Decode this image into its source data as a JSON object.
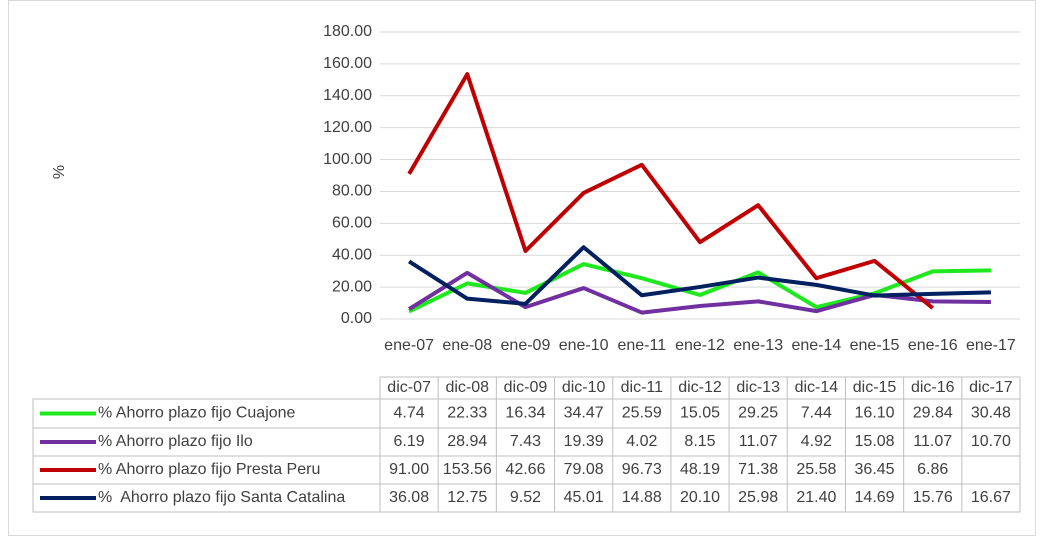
{
  "chart_data": {
    "type": "line",
    "y_label": "%",
    "categories": [
      "ene-07",
      "ene-08",
      "ene-09",
      "ene-10",
      "ene-11",
      "ene-12",
      "ene-13",
      "ene-14",
      "ene-15",
      "ene-16",
      "ene-17"
    ],
    "table_columns": [
      "dic-07",
      "dic-08",
      "dic-09",
      "dic-10",
      "dic-11",
      "dic-12",
      "dic-13",
      "dic-14",
      "dic-15",
      "dic-16",
      "dic-17"
    ],
    "ylim": [
      0,
      180
    ],
    "yticks": [
      {
        "value": 0,
        "label": "0.00"
      },
      {
        "value": 20,
        "label": "20.00"
      },
      {
        "value": 40,
        "label": "40.00"
      },
      {
        "value": 60,
        "label": "60.00"
      },
      {
        "value": 80,
        "label": "80.00"
      },
      {
        "value": 100,
        "label": "100.00"
      },
      {
        "value": 120,
        "label": "120.00"
      },
      {
        "value": 140,
        "label": "140.00"
      },
      {
        "value": 160,
        "label": "160.00"
      },
      {
        "value": 180,
        "label": "180.00"
      }
    ],
    "grid": true,
    "series": [
      {
        "name": "% Ahorro plazo fijo Cuajone",
        "color": "#1fe81f",
        "values": [
          4.74,
          22.33,
          16.34,
          34.47,
          25.59,
          15.05,
          29.25,
          7.44,
          16.1,
          29.84,
          30.48
        ],
        "value_labels": [
          "4.74",
          "22.33",
          "16.34",
          "34.47",
          "25.59",
          "15.05",
          "29.25",
          "7.44",
          "16.10",
          "29.84",
          "30.48"
        ]
      },
      {
        "name": "% Ahorro plazo fijo Ilo",
        "color": "#7030a0",
        "values": [
          6.19,
          28.94,
          7.43,
          19.39,
          4.02,
          8.15,
          11.07,
          4.92,
          15.08,
          11.07,
          10.7
        ],
        "value_labels": [
          "6.19",
          "28.94",
          "7.43",
          "19.39",
          "4.02",
          "8.15",
          "11.07",
          "4.92",
          "15.08",
          "11.07",
          "10.70"
        ]
      },
      {
        "name": "% Ahorro plazo fijo Presta Peru",
        "color": "#c00000",
        "values": [
          91,
          153.56,
          42.66,
          79.08,
          96.73,
          48.19,
          71.38,
          25.58,
          36.45,
          6.86,
          null
        ],
        "value_labels": [
          "91.00",
          "153.56",
          "42.66",
          "79.08",
          "96.73",
          "48.19",
          "71.38",
          "25.58",
          "36.45",
          "6.86",
          null
        ]
      },
      {
        "name": "%  Ahorro plazo fijo Santa Catalina",
        "color": "#002060",
        "values": [
          36.08,
          12.75,
          9.52,
          45.01,
          14.88,
          20.1,
          25.98,
          21.4,
          14.69,
          15.76,
          16.67
        ],
        "value_labels": [
          "36.08",
          "12.75",
          "9.52",
          "45.01",
          "14.88",
          "20.10",
          "25.98",
          "21.40",
          "14.69",
          "15.76",
          "16.67"
        ]
      }
    ]
  }
}
